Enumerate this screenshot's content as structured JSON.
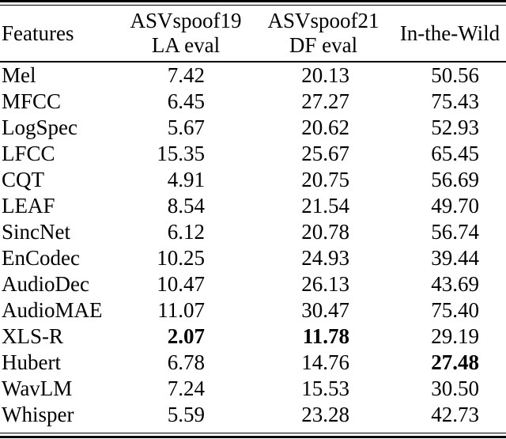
{
  "table": {
    "header": {
      "features": "Features",
      "col2_line1": "ASVspoof19",
      "col2_line2": "LA eval",
      "col3_line1": "ASVspoof21",
      "col3_line2": "DF eval",
      "col4": "In-the-Wild"
    },
    "rows": [
      {
        "feature": "Mel",
        "values": [
          "7.42",
          "20.13",
          "50.56"
        ]
      },
      {
        "feature": "MFCC",
        "values": [
          "6.45",
          "27.27",
          "75.43"
        ]
      },
      {
        "feature": "LogSpec",
        "values": [
          "5.67",
          "20.62",
          "52.93"
        ]
      },
      {
        "feature": "LFCC",
        "values": [
          "15.35",
          "25.67",
          "65.45"
        ]
      },
      {
        "feature": "CQT",
        "values": [
          "4.91",
          "20.75",
          "56.69"
        ]
      },
      {
        "feature": "LEAF",
        "values": [
          "8.54",
          "21.54",
          "49.70"
        ]
      },
      {
        "feature": "SincNet",
        "values": [
          "6.12",
          "20.78",
          "56.74"
        ]
      },
      {
        "feature": "EnCodec",
        "values": [
          "10.25",
          "24.93",
          "39.44"
        ]
      },
      {
        "feature": "AudioDec",
        "values": [
          "10.47",
          "26.13",
          "43.69"
        ]
      },
      {
        "feature": "AudioMAE",
        "values": [
          "11.07",
          "30.47",
          "75.40"
        ]
      },
      {
        "feature": "XLS-R",
        "values": [
          "2.07",
          "11.78",
          "29.19"
        ]
      },
      {
        "feature": "Hubert",
        "values": [
          "6.78",
          "14.76",
          "27.48"
        ]
      },
      {
        "feature": "WavLM",
        "values": [
          "7.24",
          "15.53",
          "30.50"
        ]
      },
      {
        "feature": "Whisper",
        "values": [
          "5.59",
          "23.28",
          "42.73"
        ]
      }
    ],
    "bold_cells": [
      {
        "row": "XLS-R",
        "columns": [
          "ASVspoof19 LA eval",
          "ASVspoof21 DF eval"
        ]
      },
      {
        "row": "Hubert",
        "columns": [
          "In-the-Wild"
        ]
      }
    ]
  },
  "colors": {
    "text": "#000000",
    "rule": "#000000",
    "background": "#ffffff"
  }
}
